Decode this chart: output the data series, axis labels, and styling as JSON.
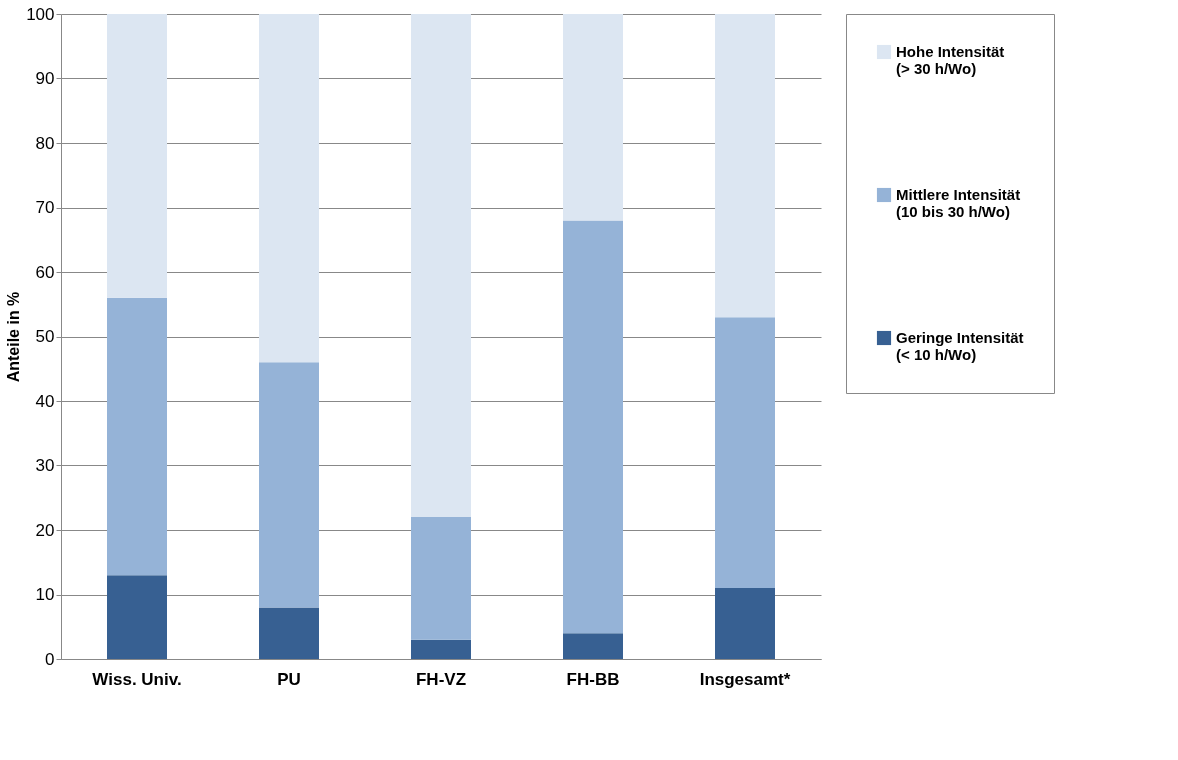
{
  "chart_data": {
    "type": "bar",
    "stacked": true,
    "ylabel": "Anteile in %",
    "categories": [
      "Wiss. Univ.",
      "PU",
      "FH-VZ",
      "FH-BB",
      "Insgesamt*"
    ],
    "series": [
      {
        "name": "Geringe Intensität\n(< 10 h/Wo)",
        "color": "#376092",
        "values": [
          13,
          8,
          3,
          4,
          11
        ]
      },
      {
        "name": "Mittlere Intensität\n(10 bis 30 h/Wo)",
        "color": "#95b3d7",
        "values": [
          43,
          38,
          19,
          64,
          42
        ]
      },
      {
        "name": "Hohe Intensität\n(> 30 h/Wo)",
        "color": "#dce6f2",
        "values": [
          44,
          54,
          78,
          32,
          47
        ]
      }
    ],
    "ylim": [
      0,
      100
    ],
    "yticks": [
      0,
      10,
      20,
      30,
      40,
      50,
      60,
      70,
      80,
      90,
      100
    ],
    "grid": "y",
    "legend": "right"
  }
}
